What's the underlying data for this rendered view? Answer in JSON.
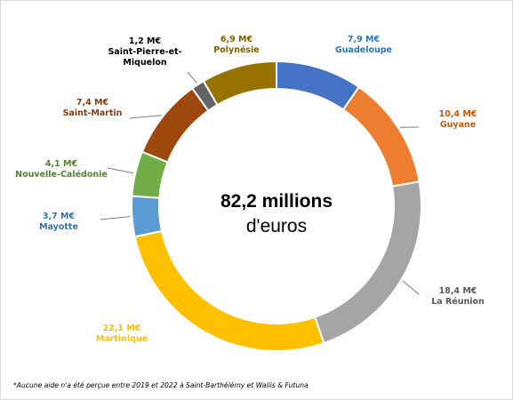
{
  "chart_data": {
    "type": "pie",
    "donut": true,
    "title": "",
    "center_text_line1": "82,2 millions",
    "center_text_line2": "d'euros",
    "slices": [
      {
        "name": "Guadeloupe",
        "label": "7,9 M€",
        "value": 7.9,
        "color": "#4472C4",
        "label_color": "#2E75B6"
      },
      {
        "name": "Guyane",
        "label": "10,4 M€",
        "value": 10.4,
        "color": "#ED7D31",
        "label_color": "#C55A11"
      },
      {
        "name": "La Réunion",
        "label": "18,4 M€",
        "value": 18.4,
        "color": "#A5A5A5",
        "label_color": "#595959"
      },
      {
        "name": "Martinique",
        "label": "22,1 M€",
        "value": 22.1,
        "color": "#FFC000",
        "label_color": "#FFC000"
      },
      {
        "name": "Mayotte",
        "label": "3,7 M€",
        "value": 3.7,
        "color": "#5B9BD5",
        "label_color": "#2E75B6"
      },
      {
        "name": "Nouvelle-Calédonie",
        "label": "4,1 M€",
        "value": 4.1,
        "color": "#70AD47",
        "label_color": "#548235"
      },
      {
        "name": "Saint-Martin",
        "label": "7,4 M€",
        "value": 7.4,
        "color": "#9E480E",
        "label_color": "#843C0C"
      },
      {
        "name": "Saint-Pierre-et-Miquelon",
        "name_lines": [
          "Saint-Pierre-et-",
          "Miquelon"
        ],
        "label": "1,2 M€",
        "value": 1.2,
        "color": "#636363",
        "label_color": "#000000"
      },
      {
        "name": "Polynésie",
        "label": "6,9 M€",
        "value": 6.9,
        "color": "#997300",
        "label_color": "#7F6000"
      }
    ],
    "legend": "none (data labels outside)"
  },
  "footnote": "*Aucune aide n'a été perçue entre 2019 et 2022 à Saint-Barthélémy et Wallis & Futuna"
}
